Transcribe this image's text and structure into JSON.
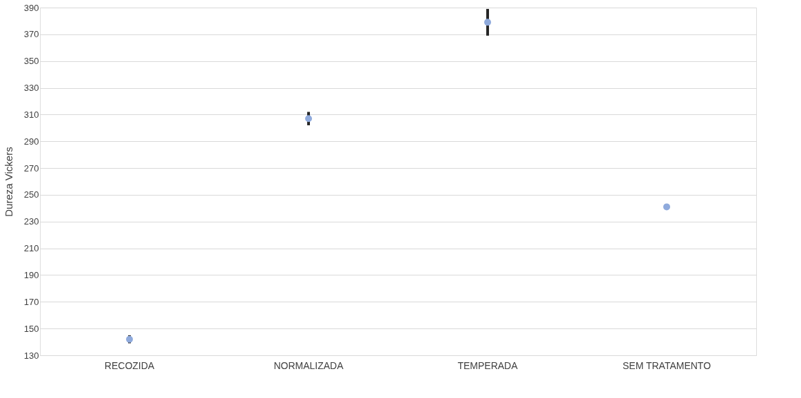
{
  "chart_data": {
    "type": "scatter",
    "ylabel": "Dureza Vickers",
    "categories": [
      "RECOZIDA",
      "NORMALIZADA",
      "TEMPERADA",
      "SEM TRATAMENTO"
    ],
    "series": [
      {
        "color": "#8faadc",
        "values": [
          142,
          307,
          379,
          241
        ],
        "errors": [
          3,
          5,
          10,
          null
        ]
      }
    ],
    "ylim": [
      130,
      390
    ],
    "yticks": [
      130,
      150,
      170,
      190,
      210,
      230,
      250,
      270,
      290,
      310,
      330,
      350,
      370,
      390
    ],
    "grid": "y",
    "marker": "circle"
  }
}
